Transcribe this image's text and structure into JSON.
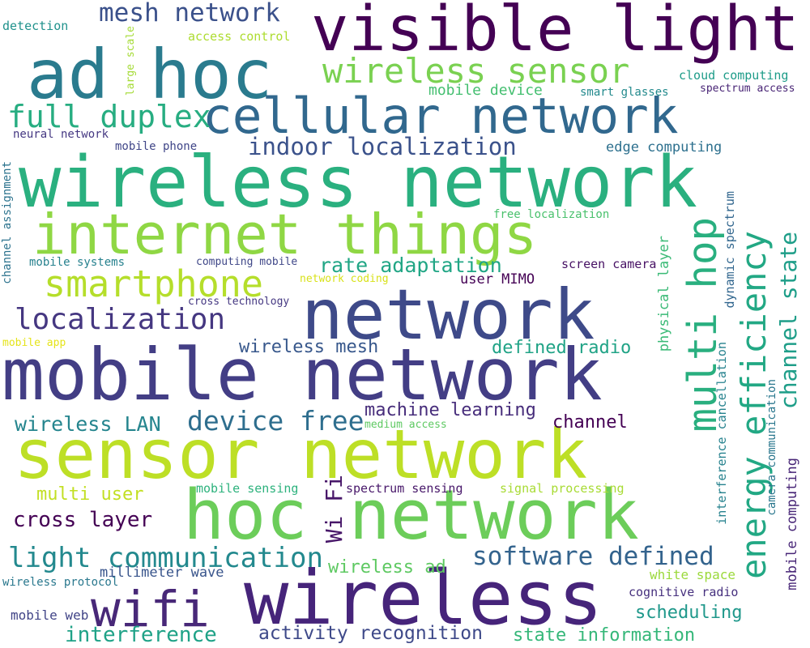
{
  "words": [
    {
      "text": "ad hoc",
      "color": "#2a7b8e"
    },
    {
      "text": "visible light",
      "color": "#440154"
    },
    {
      "text": "wireless sensor",
      "color": "#7ad151"
    },
    {
      "text": "mesh network",
      "color": "#3b518b"
    },
    {
      "text": "cellular network",
      "color": "#31688e"
    },
    {
      "text": "full duplex",
      "color": "#27ad81"
    },
    {
      "text": "indoor localization",
      "color": "#3b528b"
    },
    {
      "text": "wireless network",
      "color": "#2ab07f"
    },
    {
      "text": "internet things",
      "color": "#8fd744"
    },
    {
      "text": "smartphone",
      "color": "#b5de2b"
    },
    {
      "text": "network",
      "color": "#3e4a89"
    },
    {
      "text": "localization",
      "color": "#453781"
    },
    {
      "text": "mobile network",
      "color": "#433e85"
    },
    {
      "text": "sensor network",
      "color": "#bddf26"
    },
    {
      "text": "hoc network",
      "color": "#6ccd5a"
    },
    {
      "text": "wireless",
      "color": "#46247a"
    },
    {
      "text": "wifi",
      "color": "#482878"
    },
    {
      "text": "multi hop",
      "color": "#29af7f"
    },
    {
      "text": "energy efficiency",
      "color": "#22a884"
    },
    {
      "text": "channel state",
      "color": "#1f9e89"
    },
    {
      "text": "rate adaptation",
      "color": "#21a685"
    },
    {
      "text": "device free",
      "color": "#2e6e8e"
    },
    {
      "text": "wireless LAN",
      "color": "#25858e"
    },
    {
      "text": "machine learning",
      "color": "#472d7b"
    },
    {
      "text": "channel",
      "color": "#440154"
    },
    {
      "text": "software defined",
      "color": "#33638d"
    },
    {
      "text": "light communication",
      "color": "#23898e"
    },
    {
      "text": "cross layer",
      "color": "#440154"
    },
    {
      "text": "multi user",
      "color": "#c2df23"
    },
    {
      "text": "interference",
      "color": "#1fa287"
    },
    {
      "text": "activity recognition",
      "color": "#3e4989"
    },
    {
      "text": "state information",
      "color": "#35b779"
    },
    {
      "text": "wireless ad",
      "color": "#5ec962"
    },
    {
      "text": "wireless mesh",
      "color": "#38588c"
    },
    {
      "text": "defined radio",
      "color": "#20a386"
    },
    {
      "text": "Wi Fi",
      "color": "#481769"
    },
    {
      "text": "scheduling",
      "color": "#1f988b"
    },
    {
      "text": "millimeter wave",
      "color": "#39558c"
    },
    {
      "text": "mobile web",
      "color": "#414487"
    },
    {
      "text": "wireless protocol",
      "color": "#2a788e"
    },
    {
      "text": "white space",
      "color": "#9bd93c"
    },
    {
      "text": "cognitive radio",
      "color": "#46307e"
    },
    {
      "text": "mobile computing",
      "color": "#482677"
    },
    {
      "text": "camera communication",
      "color": "#2a778e"
    },
    {
      "text": "interference cancellation",
      "color": "#26828e"
    },
    {
      "text": "physical layer",
      "color": "#3aba76"
    },
    {
      "text": "dynamic spectrum",
      "color": "#31668e"
    },
    {
      "text": "channel assignment",
      "color": "#2c738e"
    },
    {
      "text": "large scale",
      "color": "#a5db36"
    },
    {
      "text": "detection",
      "color": "#20928c"
    },
    {
      "text": "access control",
      "color": "#addc30"
    },
    {
      "text": "mobile device",
      "color": "#44bf70"
    },
    {
      "text": "smart glasses",
      "color": "#238a8d"
    },
    {
      "text": "cloud computing",
      "color": "#1e9c89"
    },
    {
      "text": "spectrum access",
      "color": "#482475"
    },
    {
      "text": "neural network",
      "color": "#453882"
    },
    {
      "text": "mobile phone",
      "color": "#404688"
    },
    {
      "text": "edge computing",
      "color": "#2d708e"
    },
    {
      "text": "free localization",
      "color": "#4ac16d"
    },
    {
      "text": "mobile systems",
      "color": "#26818e"
    },
    {
      "text": "computing mobile",
      "color": "#3f4788"
    },
    {
      "text": "screen camera",
      "color": "#471164"
    },
    {
      "text": "network coding",
      "color": "#d8e219"
    },
    {
      "text": "user MIMO",
      "color": "#440154"
    },
    {
      "text": "cross technology",
      "color": "#453882"
    },
    {
      "text": "mobile app",
      "color": "#e5e419"
    },
    {
      "text": "medium access",
      "color": "#5ec962"
    },
    {
      "text": "mobile sensing",
      "color": "#2db27d"
    },
    {
      "text": "spectrum sensing",
      "color": "#48186a"
    },
    {
      "text": "signal processing",
      "color": "#a8db34"
    }
  ]
}
